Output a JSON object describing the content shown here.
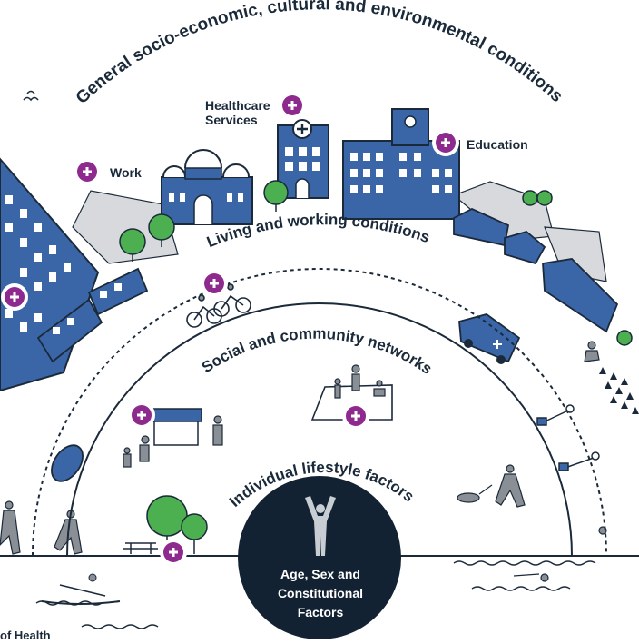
{
  "arcs": {
    "outer": "General socio-economic, cultural and environmental conditions",
    "living": "Living and working conditions",
    "social": "Social and community networks",
    "individual": "Individual lifestyle factors"
  },
  "labels": {
    "healthcare": [
      "Healthcare",
      "Services"
    ],
    "education": "Education",
    "work": "Work"
  },
  "core": [
    "Age, Sex and",
    "Constitutional",
    "Factors"
  ],
  "bottom_left": "of Health",
  "colors": {
    "navy": "#1b2a3a",
    "blue": "#3a66a8",
    "purple": "#8e2a8e",
    "green": "#4caf50",
    "grey": "#cfd2d6",
    "core_fill": "#122232"
  },
  "icons": [
    "plus-badge-icon",
    "building-icon",
    "tree-icon",
    "tram-icon",
    "ambulance-icon",
    "cyclists-icon",
    "market-stall-icon",
    "picnic-icon",
    "dog-walker-icon",
    "runner-icon",
    "rower-icon",
    "swimmer-icon",
    "street-lamp-icon",
    "person-arms-up-icon"
  ]
}
